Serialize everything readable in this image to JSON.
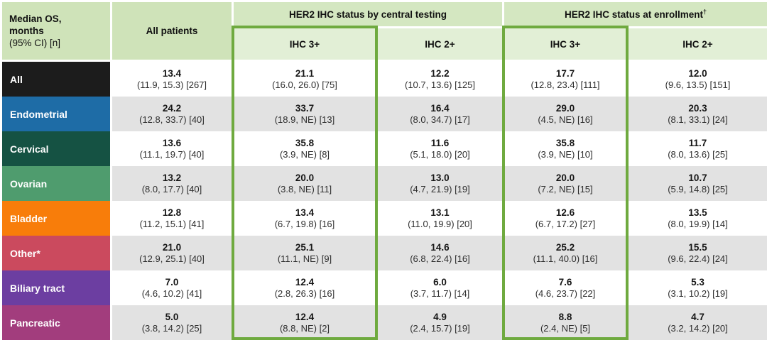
{
  "table": {
    "corner": {
      "line1": "Median OS,",
      "line2": "months",
      "line3": "(95% CI) [n]"
    },
    "all_patients_header": "All patients",
    "groups": [
      {
        "label": "HER2 IHC status by central testing",
        "sup": ""
      },
      {
        "label": "HER2 IHC status at enrollment",
        "sup": "†"
      }
    ],
    "subheaders": [
      "IHC 3+",
      "IHC 2+",
      "IHC 3+",
      "IHC 2+"
    ],
    "rows": [
      {
        "label": "All",
        "color": "#1c1c1c",
        "cells": [
          {
            "value": "13.4",
            "ci": "(11.9, 15.3) [267]"
          },
          {
            "value": "21.1",
            "ci": "(16.0, 26.0) [75]"
          },
          {
            "value": "12.2",
            "ci": "(10.7, 13.6) [125]"
          },
          {
            "value": "17.7",
            "ci": "(12.8, 23.4) [111]"
          },
          {
            "value": "12.0",
            "ci": "(9.6, 13.5) [151]"
          }
        ]
      },
      {
        "label": "Endometrial",
        "color": "#1e6ca6",
        "cells": [
          {
            "value": "24.2",
            "ci": "(12.8, 33.7) [40]"
          },
          {
            "value": "33.7",
            "ci": "(18.9, NE) [13]"
          },
          {
            "value": "16.4",
            "ci": "(8.0, 34.7) [17]"
          },
          {
            "value": "29.0",
            "ci": "(4.5, NE) [16]"
          },
          {
            "value": "20.3",
            "ci": "(8.1, 33.1) [24]"
          }
        ]
      },
      {
        "label": "Cervical",
        "color": "#155243",
        "cells": [
          {
            "value": "13.6",
            "ci": "(11.1, 19.7) [40]"
          },
          {
            "value": "35.8",
            "ci": "(3.9, NE) [8]"
          },
          {
            "value": "11.6",
            "ci": "(5.1, 18.0) [20]"
          },
          {
            "value": "35.8",
            "ci": "(3.9, NE) [10]"
          },
          {
            "value": "11.7",
            "ci": "(8.0, 13.6) [25]"
          }
        ]
      },
      {
        "label": "Ovarian",
        "color": "#4f9c6e",
        "cells": [
          {
            "value": "13.2",
            "ci": "(8.0, 17.7) [40]"
          },
          {
            "value": "20.0",
            "ci": "(3.8, NE) [11]"
          },
          {
            "value": "13.0",
            "ci": "(4.7, 21.9) [19]"
          },
          {
            "value": "20.0",
            "ci": "(7.2, NE) [15]"
          },
          {
            "value": "10.7",
            "ci": "(5.9, 14.8) [25]"
          }
        ]
      },
      {
        "label": "Bladder",
        "color": "#f87d0a",
        "cells": [
          {
            "value": "12.8",
            "ci": "(11.2, 15.1) [41]"
          },
          {
            "value": "13.4",
            "ci": "(6.7, 19.8) [16]"
          },
          {
            "value": "13.1",
            "ci": "(11.0, 19.9) [20]"
          },
          {
            "value": "12.6",
            "ci": "(6.7, 17.2) [27]"
          },
          {
            "value": "13.5",
            "ci": "(8.0, 19.9) [14]"
          }
        ]
      },
      {
        "label": "Other*",
        "color": "#cb4a5e",
        "cells": [
          {
            "value": "21.0",
            "ci": "(12.9, 25.1) [40]"
          },
          {
            "value": "25.1",
            "ci": "(11.1, NE) [9]"
          },
          {
            "value": "14.6",
            "ci": "(6.8, 22.4) [16]"
          },
          {
            "value": "25.2",
            "ci": "(11.1, 40.0) [16]"
          },
          {
            "value": "15.5",
            "ci": "(9.6, 22.4) [24]"
          }
        ]
      },
      {
        "label": "Biliary tract",
        "color": "#6c3ea1",
        "cells": [
          {
            "value": "7.0",
            "ci": "(4.6, 10.2) [41]"
          },
          {
            "value": "12.4",
            "ci": "(2.8, 26.3) [16]"
          },
          {
            "value": "6.0",
            "ci": "(3.7, 11.7) [14]"
          },
          {
            "value": "7.6",
            "ci": "(4.6, 23.7) [22]"
          },
          {
            "value": "5.3",
            "ci": "(3.1, 10.2) [19]"
          }
        ]
      },
      {
        "label": "Pancreatic",
        "color": "#a23d7d",
        "cells": [
          {
            "value": "5.0",
            "ci": "(3.8, 14.2) [25]"
          },
          {
            "value": "12.4",
            "ci": "(8.8, NE) [2]"
          },
          {
            "value": "4.9",
            "ci": "(2.4, 15.7) [19]"
          },
          {
            "value": "8.8",
            "ci": "(2.4, NE) [5]"
          },
          {
            "value": "4.7",
            "ci": "(3.2, 14.2) [20]"
          }
        ]
      }
    ]
  },
  "colors": {
    "header_green": "#cfe3b9",
    "group_band_green": "#d4e7c1",
    "subheader_green": "#e2efd6",
    "row_stripe_gray": "#e2e2e2",
    "highlight_box_green": "#6faa3f"
  },
  "chart_data": {
    "type": "table",
    "title": "Median OS, months (95% CI) [n]",
    "columns": [
      "All patients",
      "HER2 IHC status by central testing — IHC 3+",
      "HER2 IHC status by central testing — IHC 2+",
      "HER2 IHC status at enrollment† — IHC 3+",
      "HER2 IHC status at enrollment† — IHC 2+"
    ],
    "rows": [
      "All",
      "Endometrial",
      "Cervical",
      "Ovarian",
      "Bladder",
      "Other*",
      "Biliary tract",
      "Pancreatic"
    ],
    "cells": [
      [
        "13.4 (11.9, 15.3) [267]",
        "21.1 (16.0, 26.0) [75]",
        "12.2 (10.7, 13.6) [125]",
        "17.7 (12.8, 23.4) [111]",
        "12.0 (9.6, 13.5) [151]"
      ],
      [
        "24.2 (12.8, 33.7) [40]",
        "33.7 (18.9, NE) [13]",
        "16.4 (8.0, 34.7) [17]",
        "29.0 (4.5, NE) [16]",
        "20.3 (8.1, 33.1) [24]"
      ],
      [
        "13.6 (11.1, 19.7) [40]",
        "35.8 (3.9, NE) [8]",
        "11.6 (5.1, 18.0) [20]",
        "35.8 (3.9, NE) [10]",
        "11.7 (8.0, 13.6) [25]"
      ],
      [
        "13.2 (8.0, 17.7) [40]",
        "20.0 (3.8, NE) [11]",
        "13.0 (4.7, 21.9) [19]",
        "20.0 (7.2, NE) [15]",
        "10.7 (5.9, 14.8) [25]"
      ],
      [
        "12.8 (11.2, 15.1) [41]",
        "13.4 (6.7, 19.8) [16]",
        "13.1 (11.0, 19.9) [20]",
        "12.6 (6.7, 17.2) [27]",
        "13.5 (8.0, 19.9) [14]"
      ],
      [
        "21.0 (12.9, 25.1) [40]",
        "25.1 (11.1, NE) [9]",
        "14.6 (6.8, 22.4) [16]",
        "25.2 (11.1, 40.0) [16]",
        "15.5 (9.6, 22.4) [24]"
      ],
      [
        "7.0 (4.6, 10.2) [41]",
        "12.4 (2.8, 26.3) [16]",
        "6.0 (3.7, 11.7) [14]",
        "7.6 (4.6, 23.7) [22]",
        "5.3 (3.1, 10.2) [19]"
      ],
      [
        "5.0 (3.8, 14.2) [25]",
        "12.4 (8.8, NE) [2]",
        "4.9 (2.4, 15.7) [19]",
        "8.8 (2.4, NE) [5]",
        "4.7 (3.2, 14.2) [20]"
      ]
    ],
    "highlighted_columns": [
      "IHC 3+ (central testing)",
      "IHC 3+ (at enrollment)"
    ]
  }
}
